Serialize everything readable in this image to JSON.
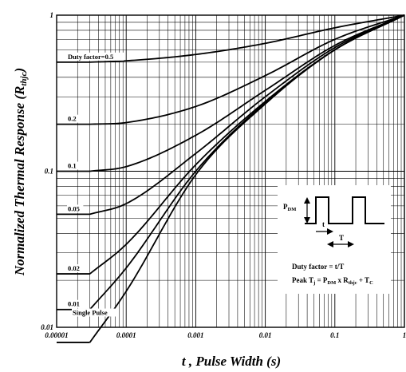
{
  "chart_data": {
    "type": "line",
    "title": "",
    "xlabel": "t , Pulse Width (s)",
    "ylabel_main": "Normalized Thermal Response (R",
    "ylabel_sub": "thjc",
    "ylabel_close": ")",
    "x_scale": "log",
    "y_scale": "log",
    "xlim": [
      1e-05,
      1
    ],
    "ylim": [
      0.01,
      1
    ],
    "grid": true,
    "x_ticks": [
      {
        "value": 1e-05,
        "label": "0.00001"
      },
      {
        "value": 0.0001,
        "label": "0.0001"
      },
      {
        "value": 0.001,
        "label": "0.001"
      },
      {
        "value": 0.01,
        "label": "0.01"
      },
      {
        "value": 0.1,
        "label": "0.1"
      },
      {
        "value": 1,
        "label": "1"
      }
    ],
    "y_ticks": [
      {
        "value": 0.01,
        "label": "0.01"
      },
      {
        "value": 0.1,
        "label": "0.1"
      },
      {
        "value": 1,
        "label": "1"
      }
    ],
    "series": [
      {
        "name": "Duty factor=0.5",
        "x": [
          3e-05,
          0.0001,
          0.001,
          0.01,
          0.1,
          1
        ],
        "y": [
          0.5,
          0.51,
          0.56,
          0.66,
          0.83,
          1.0
        ]
      },
      {
        "name": "0.2",
        "x": [
          3e-05,
          0.0001,
          0.001,
          0.01,
          0.1,
          1
        ],
        "y": [
          0.2,
          0.205,
          0.26,
          0.41,
          0.7,
          1.0
        ]
      },
      {
        "name": "0.1",
        "x": [
          3e-05,
          0.0001,
          0.001,
          0.01,
          0.1,
          1
        ],
        "y": [
          0.1,
          0.107,
          0.17,
          0.33,
          0.64,
          1.0
        ]
      },
      {
        "name": "0.05",
        "x": [
          3e-05,
          0.0001,
          0.001,
          0.01,
          0.1,
          1
        ],
        "y": [
          0.053,
          0.062,
          0.13,
          0.3,
          0.62,
          1.0
        ]
      },
      {
        "name": "0.02",
        "x": [
          3e-05,
          0.0001,
          0.001,
          0.01,
          0.1,
          1
        ],
        "y": [
          0.022,
          0.034,
          0.11,
          0.28,
          0.6,
          1.0
        ]
      },
      {
        "name": "0.01",
        "x": [
          3e-05,
          0.0001,
          0.001,
          0.01,
          0.1,
          1
        ],
        "y": [
          0.013,
          0.024,
          0.1,
          0.275,
          0.6,
          1.0
        ]
      },
      {
        "name": "Single Pulse",
        "x": [
          3e-05,
          0.0001,
          0.001,
          0.01,
          0.1,
          1
        ],
        "y": [
          0.008,
          0.017,
          0.095,
          0.27,
          0.6,
          1.0
        ]
      }
    ],
    "inset": {
      "pdm_main": "P",
      "pdm_sub": "DM",
      "t_label": "t",
      "T_label": "T",
      "duty_line": "Duty factor = t/T",
      "peak_line": {
        "p1": "Peak T",
        "s1": "j",
        "p2": " = P",
        "s2": "DM",
        "p3": " x R",
        "s3": "thjc",
        "p4": " + T",
        "s4": "C"
      }
    }
  }
}
